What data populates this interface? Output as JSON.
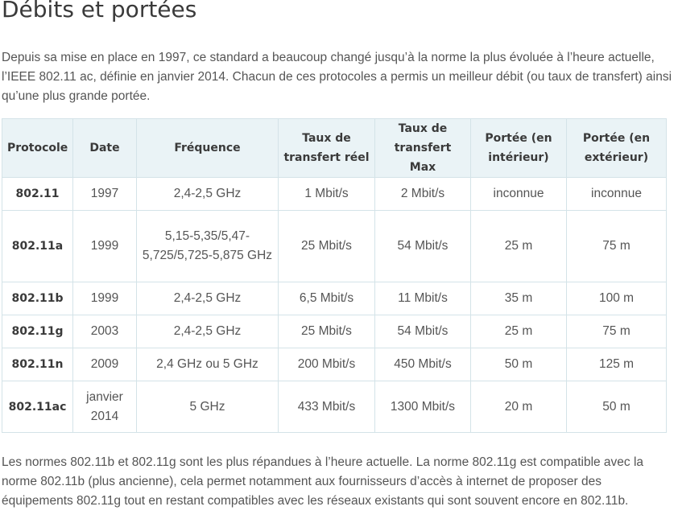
{
  "title": "Débits et portées",
  "intro": "Depuis sa mise en place en 1997, ce standard a beaucoup changé jusqu’à la norme la plus évoluée à l’heure actuelle, l’IEEE 802.11 ac, définie en janvier 2014. Chacun de ces protocoles a permis un meilleur débit (ou taux de transfert) ainsi qu’une plus grande portée.",
  "table": {
    "headers": [
      "Protocole",
      "Date",
      "Fréquence",
      "Taux de transfert réel",
      "Taux de transfert Max",
      "Portée (en intérieur)",
      "Portée (en extérieur)"
    ],
    "rows": [
      [
        "802.11",
        "1997",
        "2,4-2,5 GHz",
        "1 Mbit/s",
        "2 Mbit/s",
        "inconnue",
        "inconnue"
      ],
      [
        "802.11a",
        "1999",
        "5,15-5,35/5,47-5,725/5,725-5,875 GHz",
        "25 Mbit/s",
        "54 Mbit/s",
        "25 m",
        "75 m"
      ],
      [
        "802.11b",
        "1999",
        "2,4-2,5 GHz",
        "6,5 Mbit/s",
        "11 Mbit/s",
        "35 m",
        "100 m"
      ],
      [
        "802.11g",
        "2003",
        "2,4-2,5 GHz",
        "25 Mbit/s",
        "54 Mbit/s",
        "25 m",
        "75 m"
      ],
      [
        "802.11n",
        "2009",
        "2,4 GHz ou 5 GHz",
        "200 Mbit/s",
        "450 Mbit/s",
        "50 m",
        "125 m"
      ],
      [
        "802.11ac",
        "janvier 2014",
        "5 GHz",
        "433 Mbit/s",
        "1300 Mbit/s",
        "20 m",
        "50 m"
      ]
    ]
  },
  "outro": "Les normes 802.11b et 802.11g sont les plus répandues à l’heure actuelle. La norme 802.11g est compatible avec la norme 802.11b (plus ancienne), cela permet notamment aux fournisseurs d’accès à internet de proposer des équipements 802.11g tout en restant compatibles avec les réseaux existants qui sont souvent encore en 802.11b."
}
